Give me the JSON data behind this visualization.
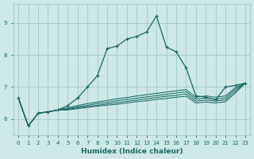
{
  "xlabel": "Humidex (Indice chaleur)",
  "xlim": [
    -0.5,
    23.5
  ],
  "ylim": [
    5.5,
    9.6
  ],
  "yticks": [
    6,
    7,
    8,
    9
  ],
  "xticks": [
    0,
    1,
    2,
    3,
    4,
    5,
    6,
    7,
    8,
    9,
    10,
    11,
    12,
    13,
    14,
    15,
    16,
    17,
    18,
    19,
    20,
    21,
    22,
    23
  ],
  "bg_color": "#cde8e6",
  "grid_color": "#a8ceca",
  "line_color": "#1a6b65",
  "series_main": [
    6.65,
    5.78,
    6.18,
    6.22,
    6.28,
    6.42,
    6.65,
    7.0,
    7.35,
    8.2,
    8.28,
    8.5,
    8.58,
    8.72,
    9.22,
    8.25,
    8.1,
    7.6,
    6.72,
    6.68,
    6.6,
    7.0,
    7.05,
    7.12
  ],
  "series_flat": [
    [
      6.65,
      5.78,
      6.18,
      6.22,
      6.28,
      6.35,
      6.42,
      6.48,
      6.53,
      6.58,
      6.63,
      6.67,
      6.72,
      6.76,
      6.8,
      6.84,
      6.88,
      6.92,
      6.68,
      6.72,
      6.68,
      6.72,
      6.98,
      7.12
    ],
    [
      6.65,
      5.78,
      6.18,
      6.22,
      6.28,
      6.32,
      6.38,
      6.43,
      6.48,
      6.52,
      6.57,
      6.61,
      6.65,
      6.69,
      6.73,
      6.77,
      6.81,
      6.85,
      6.62,
      6.65,
      6.62,
      6.66,
      6.93,
      7.12
    ],
    [
      6.65,
      5.78,
      6.18,
      6.22,
      6.28,
      6.3,
      6.35,
      6.39,
      6.43,
      6.47,
      6.51,
      6.55,
      6.59,
      6.63,
      6.67,
      6.71,
      6.74,
      6.78,
      6.56,
      6.59,
      6.56,
      6.6,
      6.87,
      7.12
    ],
    [
      6.65,
      5.78,
      6.18,
      6.22,
      6.28,
      6.28,
      6.32,
      6.36,
      6.4,
      6.43,
      6.46,
      6.5,
      6.54,
      6.57,
      6.61,
      6.64,
      6.68,
      6.71,
      6.5,
      6.53,
      6.5,
      6.54,
      6.81,
      7.12
    ]
  ]
}
